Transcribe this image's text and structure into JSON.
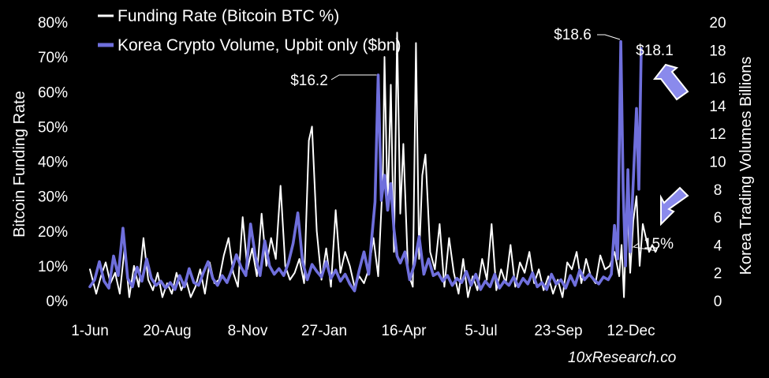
{
  "chart_data": {
    "type": "line",
    "source": "10xResearch.co",
    "x_ticks": [
      "1-Jun",
      "20-Aug",
      "8-Nov",
      "27-Jan",
      "16-Apr",
      "5-Jul",
      "23-Sep",
      "12-Dec"
    ],
    "y_left": {
      "label": "Bitcoin Funding Rate",
      "ticks": [
        "0%",
        "10%",
        "20%",
        "30%",
        "40%",
        "50%",
        "60%",
        "70%",
        "80%"
      ],
      "range": [
        0,
        80
      ]
    },
    "y_right": {
      "label": "Korea Trading  Volumes Billions",
      "ticks": [
        "0",
        "2",
        "4",
        "6",
        "8",
        "10",
        "12",
        "14",
        "16",
        "18",
        "20"
      ],
      "range": [
        0,
        20
      ]
    },
    "series": [
      {
        "name": "Funding Rate (Bitcoin BTC %)",
        "axis": "left",
        "color": "#ffffff",
        "points": [
          [
            0,
            9
          ],
          [
            8,
            2
          ],
          [
            14,
            7
          ],
          [
            20,
            11
          ],
          [
            26,
            5
          ],
          [
            32,
            8
          ],
          [
            38,
            2
          ],
          [
            44,
            15
          ],
          [
            50,
            1
          ],
          [
            56,
            10
          ],
          [
            62,
            4
          ],
          [
            68,
            18
          ],
          [
            74,
            6
          ],
          [
            80,
            3
          ],
          [
            86,
            8
          ],
          [
            92,
            1
          ],
          [
            98,
            5
          ],
          [
            104,
            2
          ],
          [
            110,
            8
          ],
          [
            116,
            3
          ],
          [
            122,
            6
          ],
          [
            128,
            1
          ],
          [
            134,
            4
          ],
          [
            140,
            9
          ],
          [
            146,
            2
          ],
          [
            152,
            11
          ],
          [
            158,
            5
          ],
          [
            164,
            6
          ],
          [
            170,
            13
          ],
          [
            176,
            18
          ],
          [
            182,
            8
          ],
          [
            188,
            4
          ],
          [
            194,
            24
          ],
          [
            200,
            9
          ],
          [
            206,
            15
          ],
          [
            212,
            7
          ],
          [
            218,
            25
          ],
          [
            224,
            10
          ],
          [
            230,
            18
          ],
          [
            236,
            12
          ],
          [
            242,
            33
          ],
          [
            248,
            10
          ],
          [
            254,
            6
          ],
          [
            260,
            8
          ],
          [
            266,
            12
          ],
          [
            272,
            5
          ],
          [
            278,
            46
          ],
          [
            282,
            50
          ],
          [
            288,
            20
          ],
          [
            294,
            6
          ],
          [
            300,
            15
          ],
          [
            306,
            4
          ],
          [
            312,
            26
          ],
          [
            318,
            8
          ],
          [
            324,
            14
          ],
          [
            330,
            10
          ],
          [
            336,
            4
          ],
          [
            342,
            7
          ],
          [
            348,
            5
          ],
          [
            354,
            9
          ],
          [
            360,
            18
          ],
          [
            366,
            7
          ],
          [
            372,
            36
          ],
          [
            374,
            70
          ],
          [
            378,
            26
          ],
          [
            382,
            62
          ],
          [
            386,
            14
          ],
          [
            390,
            77
          ],
          [
            394,
            25
          ],
          [
            398,
            45
          ],
          [
            404,
            8
          ],
          [
            410,
            4
          ],
          [
            414,
            74
          ],
          [
            418,
            12
          ],
          [
            422,
            36
          ],
          [
            426,
            42
          ],
          [
            432,
            14
          ],
          [
            438,
            9
          ],
          [
            444,
            22
          ],
          [
            450,
            4
          ],
          [
            456,
            18
          ],
          [
            462,
            8
          ],
          [
            468,
            2
          ],
          [
            474,
            12
          ],
          [
            480,
            1
          ],
          [
            486,
            7
          ],
          [
            492,
            3
          ],
          [
            498,
            12
          ],
          [
            504,
            6
          ],
          [
            510,
            22
          ],
          [
            516,
            3
          ],
          [
            522,
            9
          ],
          [
            528,
            5
          ],
          [
            534,
            16
          ],
          [
            540,
            4
          ],
          [
            546,
            11
          ],
          [
            552,
            8
          ],
          [
            558,
            14
          ],
          [
            564,
            5
          ],
          [
            570,
            9
          ],
          [
            576,
            3
          ],
          [
            582,
            7
          ],
          [
            588,
            2
          ],
          [
            594,
            6
          ],
          [
            600,
            1
          ],
          [
            606,
            11
          ],
          [
            612,
            9
          ],
          [
            618,
            14
          ],
          [
            624,
            5
          ],
          [
            630,
            12
          ],
          [
            636,
            7
          ],
          [
            642,
            5
          ],
          [
            648,
            13
          ],
          [
            654,
            9
          ],
          [
            660,
            10
          ],
          [
            666,
            14
          ],
          [
            672,
            7
          ],
          [
            675,
            16
          ],
          [
            678,
            1
          ],
          [
            682,
            30
          ],
          [
            686,
            8
          ],
          [
            690,
            23
          ],
          [
            694,
            30
          ],
          [
            698,
            10
          ],
          [
            702,
            22
          ],
          [
            706,
            18
          ],
          [
            710,
            14
          ],
          [
            714,
            16
          ],
          [
            718,
            14
          ],
          [
            720,
            15
          ]
        ]
      },
      {
        "name": "Korea Crypto Volume, Upbit only ($bn)",
        "axis": "right",
        "color": "#6f6fdc",
        "points": [
          [
            0,
            1.0
          ],
          [
            6,
            1.5
          ],
          [
            12,
            2.8
          ],
          [
            18,
            1.4
          ],
          [
            24,
            0.9
          ],
          [
            30,
            3.2
          ],
          [
            36,
            1.8
          ],
          [
            42,
            5.2
          ],
          [
            48,
            1.6
          ],
          [
            54,
            1.0
          ],
          [
            60,
            2.4
          ],
          [
            66,
            1.4
          ],
          [
            72,
            3.0
          ],
          [
            78,
            1.6
          ],
          [
            84,
            1.1
          ],
          [
            90,
            1.4
          ],
          [
            96,
            0.9
          ],
          [
            102,
            1.3
          ],
          [
            108,
            0.8
          ],
          [
            114,
            1.8
          ],
          [
            120,
            1.0
          ],
          [
            126,
            2.3
          ],
          [
            132,
            1.3
          ],
          [
            138,
            1.1
          ],
          [
            144,
            2.0
          ],
          [
            150,
            2.8
          ],
          [
            156,
            1.6
          ],
          [
            162,
            1.1
          ],
          [
            168,
            1.8
          ],
          [
            174,
            1.3
          ],
          [
            180,
            2.2
          ],
          [
            186,
            3.3
          ],
          [
            192,
            2.4
          ],
          [
            198,
            1.8
          ],
          [
            204,
            5.5
          ],
          [
            210,
            3.2
          ],
          [
            216,
            1.8
          ],
          [
            222,
            4.3
          ],
          [
            228,
            2.5
          ],
          [
            234,
            1.9
          ],
          [
            240,
            2.3
          ],
          [
            246,
            1.8
          ],
          [
            252,
            2.7
          ],
          [
            258,
            4.1
          ],
          [
            264,
            6.3
          ],
          [
            270,
            2.8
          ],
          [
            276,
            1.5
          ],
          [
            282,
            2.6
          ],
          [
            288,
            2.1
          ],
          [
            294,
            1.7
          ],
          [
            300,
            2.8
          ],
          [
            306,
            1.6
          ],
          [
            312,
            2.2
          ],
          [
            318,
            1.4
          ],
          [
            324,
            1.9
          ],
          [
            330,
            1.2
          ],
          [
            336,
            0.7
          ],
          [
            342,
            2.2
          ],
          [
            348,
            3.5
          ],
          [
            354,
            1.9
          ],
          [
            358,
            4.6
          ],
          [
            362,
            7.1
          ],
          [
            366,
            16.2
          ],
          [
            370,
            7.2
          ],
          [
            374,
            9.0
          ],
          [
            378,
            6.5
          ],
          [
            382,
            8.4
          ],
          [
            386,
            5.1
          ],
          [
            390,
            3.2
          ],
          [
            394,
            2.7
          ],
          [
            400,
            3.5
          ],
          [
            406,
            1.5
          ],
          [
            412,
            2.6
          ],
          [
            418,
            4.6
          ],
          [
            424,
            1.9
          ],
          [
            430,
            3.0
          ],
          [
            436,
            1.8
          ],
          [
            442,
            2.0
          ],
          [
            448,
            1.4
          ],
          [
            454,
            1.8
          ],
          [
            460,
            1.1
          ],
          [
            466,
            1.6
          ],
          [
            472,
            1.3
          ],
          [
            478,
            2.1
          ],
          [
            484,
            1.1
          ],
          [
            490,
            1.9
          ],
          [
            496,
            0.8
          ],
          [
            502,
            1.4
          ],
          [
            508,
            1.0
          ],
          [
            514,
            1.9
          ],
          [
            520,
            0.9
          ],
          [
            526,
            1.4
          ],
          [
            532,
            1.1
          ],
          [
            538,
            1.7
          ],
          [
            544,
            1.0
          ],
          [
            550,
            1.6
          ],
          [
            556,
            1.2
          ],
          [
            562,
            2.0
          ],
          [
            568,
            1.0
          ],
          [
            574,
            1.3
          ],
          [
            580,
            0.8
          ],
          [
            586,
            1.9
          ],
          [
            592,
            1.2
          ],
          [
            598,
            1.5
          ],
          [
            604,
            0.9
          ],
          [
            610,
            1.8
          ],
          [
            616,
            1.1
          ],
          [
            622,
            2.2
          ],
          [
            628,
            1.5
          ],
          [
            634,
            1.9
          ],
          [
            640,
            1.5
          ],
          [
            646,
            1.2
          ],
          [
            652,
            1.7
          ],
          [
            658,
            1.5
          ],
          [
            662,
            1.9
          ],
          [
            666,
            5.4
          ],
          [
            670,
            3.0
          ],
          [
            674,
            18.6
          ],
          [
            677,
            8.0
          ],
          [
            680,
            2.5
          ],
          [
            683,
            9.4
          ],
          [
            686,
            3.5
          ],
          [
            690,
            8.7
          ],
          [
            694,
            13.8
          ],
          [
            697,
            8.0
          ],
          [
            700,
            18.1
          ]
        ]
      }
    ],
    "annotations": [
      {
        "text": "$16.2",
        "series": "volume",
        "x": 366,
        "y": 16.2
      },
      {
        "text": "$18.6",
        "series": "volume",
        "x": 674,
        "y": 18.6
      },
      {
        "text": "$18.1",
        "series": "volume",
        "x": 700,
        "y": 18.1
      },
      {
        "text": "15%",
        "series": "funding",
        "x": 718,
        "y": 15
      }
    ],
    "arrows": [
      {
        "direction": "up",
        "color": "#8a8aec"
      },
      {
        "direction": "down",
        "color": "#8a8aec"
      }
    ],
    "grid": false,
    "legend_position": "top-left"
  }
}
